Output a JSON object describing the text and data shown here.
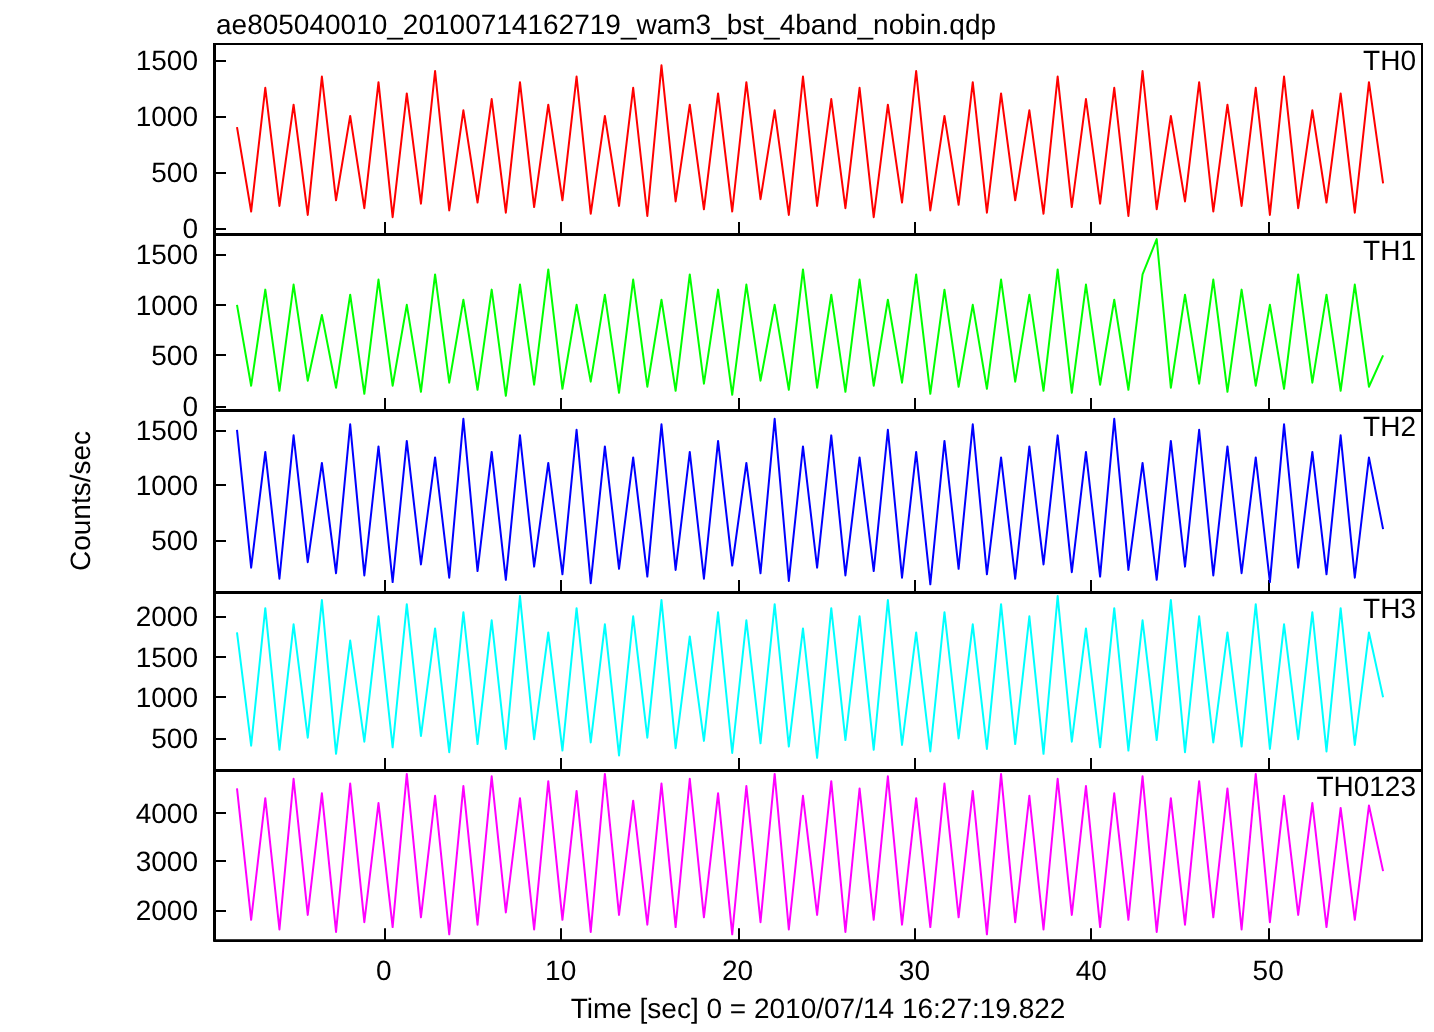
{
  "chart_data": [
    {
      "type": "line",
      "title": "ae805040010_20100714162719_wam3_bst_4band_nobin.qdp",
      "legend": "top right",
      "tick_labels": "y",
      "marker": "none",
      "x": [
        -8.3,
        -7.5,
        -6.7,
        -5.9,
        -5.1,
        -4.3,
        -3.5,
        -2.7,
        -1.9,
        -1.1,
        -0.3,
        0.5,
        1.3,
        2.1,
        2.9,
        3.7,
        4.5,
        5.3,
        6.1,
        6.9,
        7.7,
        8.5,
        9.3,
        10.1,
        10.9,
        11.7,
        12.5,
        13.3,
        14.1,
        14.9,
        15.7,
        16.5,
        17.3,
        18.1,
        18.9,
        19.7,
        20.5,
        21.3,
        22.1,
        22.9,
        23.7,
        24.5,
        25.3,
        26.1,
        26.9,
        27.7,
        28.5,
        29.3,
        30.1,
        30.9,
        31.7,
        32.5,
        33.3,
        34.1,
        34.9,
        35.7,
        36.5,
        37.3,
        38.1,
        38.9,
        39.7,
        40.5,
        41.3,
        42.1,
        42.9,
        43.7,
        44.5,
        45.3,
        46.1,
        46.9,
        47.7,
        48.5,
        49.3,
        50.1,
        50.9,
        51.7,
        52.5,
        53.3,
        54.1,
        54.9,
        55.7,
        56.5
      ],
      "series": [
        {
          "name": "TH0",
          "color": "#ff0000",
          "values": [
            900,
            150,
            1250,
            200,
            1100,
            120,
            1350,
            250,
            1000,
            180,
            1300,
            100,
            1200,
            220,
            1400,
            160,
            1050,
            230,
            1150,
            140,
            1300,
            190,
            1100,
            250,
            1350,
            130,
            1000,
            200,
            1250,
            110,
            1450,
            240,
            1100,
            170,
            1200,
            150,
            1300,
            260,
            1050,
            120,
            1350,
            200,
            1150,
            180,
            1250,
            100,
            1100,
            230,
            1400,
            160,
            1000,
            210,
            1300,
            140,
            1200,
            250,
            1050,
            130,
            1350,
            190,
            1150,
            220,
            1250,
            110,
            1400,
            170,
            1000,
            240,
            1300,
            150,
            1100,
            200,
            1250,
            120,
            1350,
            180,
            1050,
            230,
            1200,
            140,
            1300,
            400
          ]
        }
      ],
      "xlim": [
        -9.6,
        58.7
      ],
      "xticks": [
        0,
        10,
        20,
        30,
        40,
        50
      ],
      "ylim": [
        -50,
        1640
      ],
      "yticks": [
        0,
        500,
        1000,
        1500
      ]
    },
    {
      "type": "line",
      "legend": "top right",
      "tick_labels": "y",
      "marker": "none",
      "x": [
        -8.3,
        -7.5,
        -6.7,
        -5.9,
        -5.1,
        -4.3,
        -3.5,
        -2.7,
        -1.9,
        -1.1,
        -0.3,
        0.5,
        1.3,
        2.1,
        2.9,
        3.7,
        4.5,
        5.3,
        6.1,
        6.9,
        7.7,
        8.5,
        9.3,
        10.1,
        10.9,
        11.7,
        12.5,
        13.3,
        14.1,
        14.9,
        15.7,
        16.5,
        17.3,
        18.1,
        18.9,
        19.7,
        20.5,
        21.3,
        22.1,
        22.9,
        23.7,
        24.5,
        25.3,
        26.1,
        26.9,
        27.7,
        28.5,
        29.3,
        30.1,
        30.9,
        31.7,
        32.5,
        33.3,
        34.1,
        34.9,
        35.7,
        36.5,
        37.3,
        38.1,
        38.9,
        39.7,
        40.5,
        41.3,
        42.1,
        42.9,
        43.7,
        44.5,
        45.3,
        46.1,
        46.9,
        47.7,
        48.5,
        49.3,
        50.1,
        50.9,
        51.7,
        52.5,
        53.3,
        54.1,
        54.9,
        55.7,
        56.5
      ],
      "series": [
        {
          "name": "TH1",
          "color": "#00ff00",
          "values": [
            1000,
            200,
            1150,
            150,
            1200,
            250,
            900,
            180,
            1100,
            120,
            1250,
            200,
            1000,
            140,
            1300,
            230,
            1050,
            160,
            1150,
            100,
            1200,
            210,
            1350,
            170,
            1000,
            240,
            1100,
            130,
            1250,
            190,
            1050,
            150,
            1300,
            220,
            1150,
            110,
            1200,
            250,
            1000,
            160,
            1350,
            180,
            1100,
            140,
            1250,
            200,
            1050,
            230,
            1300,
            120,
            1150,
            190,
            1000,
            170,
            1250,
            240,
            1100,
            150,
            1350,
            130,
            1200,
            210,
            1050,
            160,
            1300,
            1650,
            180,
            1100,
            220,
            1250,
            140,
            1150,
            200,
            1000,
            170,
            1300,
            230,
            1100,
            150,
            1200,
            190,
            500
          ]
        }
      ],
      "xlim": [
        -9.6,
        58.7
      ],
      "xticks": [
        0,
        10,
        20,
        30,
        40,
        50
      ],
      "ylim": [
        -40,
        1700
      ],
      "yticks": [
        0,
        500,
        1000,
        1500
      ]
    },
    {
      "type": "line",
      "ylabel": "Counts/sec",
      "legend": "top right",
      "tick_labels": "y",
      "marker": "none",
      "x": [
        -8.3,
        -7.5,
        -6.7,
        -5.9,
        -5.1,
        -4.3,
        -3.5,
        -2.7,
        -1.9,
        -1.1,
        -0.3,
        0.5,
        1.3,
        2.1,
        2.9,
        3.7,
        4.5,
        5.3,
        6.1,
        6.9,
        7.7,
        8.5,
        9.3,
        10.1,
        10.9,
        11.7,
        12.5,
        13.3,
        14.1,
        14.9,
        15.7,
        16.5,
        17.3,
        18.1,
        18.9,
        19.7,
        20.5,
        21.3,
        22.1,
        22.9,
        23.7,
        24.5,
        25.3,
        26.1,
        26.9,
        27.7,
        28.5,
        29.3,
        30.1,
        30.9,
        31.7,
        32.5,
        33.3,
        34.1,
        34.9,
        35.7,
        36.5,
        37.3,
        38.1,
        38.9,
        39.7,
        40.5,
        41.3,
        42.1,
        42.9,
        43.7,
        44.5,
        45.3,
        46.1,
        46.9,
        47.7,
        48.5,
        49.3,
        50.1,
        50.9,
        51.7,
        52.5,
        53.3,
        54.1,
        54.9,
        55.7,
        56.5
      ],
      "series": [
        {
          "name": "TH2",
          "color": "#0000ff",
          "values": [
            1500,
            250,
            1300,
            150,
            1450,
            300,
            1200,
            200,
            1550,
            180,
            1350,
            120,
            1400,
            280,
            1250,
            160,
            1600,
            220,
            1300,
            140,
            1450,
            260,
            1200,
            190,
            1500,
            110,
            1350,
            240,
            1250,
            170,
            1550,
            230,
            1300,
            150,
            1400,
            270,
            1200,
            200,
            1600,
            130,
            1350,
            250,
            1450,
            180,
            1250,
            220,
            1500,
            160,
            1300,
            100,
            1400,
            240,
            1550,
            190,
            1250,
            150,
            1350,
            280,
            1450,
            210,
            1300,
            170,
            1600,
            230,
            1200,
            140,
            1400,
            260,
            1500,
            180,
            1350,
            200,
            1250,
            120,
            1550,
            250,
            1300,
            190,
            1450,
            160,
            1250,
            600
          ]
        }
      ],
      "xlim": [
        -9.6,
        58.7
      ],
      "xticks": [
        0,
        10,
        20,
        30,
        40,
        50
      ],
      "ylim": [
        30,
        1680
      ],
      "yticks": [
        500,
        1000,
        1500
      ]
    },
    {
      "type": "line",
      "legend": "top right",
      "tick_labels": "y",
      "marker": "none",
      "x": [
        -8.3,
        -7.5,
        -6.7,
        -5.9,
        -5.1,
        -4.3,
        -3.5,
        -2.7,
        -1.9,
        -1.1,
        -0.3,
        0.5,
        1.3,
        2.1,
        2.9,
        3.7,
        4.5,
        5.3,
        6.1,
        6.9,
        7.7,
        8.5,
        9.3,
        10.1,
        10.9,
        11.7,
        12.5,
        13.3,
        14.1,
        14.9,
        15.7,
        16.5,
        17.3,
        18.1,
        18.9,
        19.7,
        20.5,
        21.3,
        22.1,
        22.9,
        23.7,
        24.5,
        25.3,
        26.1,
        26.9,
        27.7,
        28.5,
        29.3,
        30.1,
        30.9,
        31.7,
        32.5,
        33.3,
        34.1,
        34.9,
        35.7,
        36.5,
        37.3,
        38.1,
        38.9,
        39.7,
        40.5,
        41.3,
        42.1,
        42.9,
        43.7,
        44.5,
        45.3,
        46.1,
        46.9,
        47.7,
        48.5,
        49.3,
        50.1,
        50.9,
        51.7,
        52.5,
        53.3,
        54.1,
        54.9,
        55.7,
        56.5
      ],
      "series": [
        {
          "name": "TH3",
          "color": "#00ffff",
          "values": [
            1800,
            400,
            2100,
            350,
            1900,
            500,
            2200,
            300,
            1700,
            450,
            2000,
            380,
            2150,
            520,
            1850,
            320,
            2050,
            420,
            1950,
            360,
            2250,
            480,
            1800,
            340,
            2100,
            440,
            1900,
            280,
            2000,
            500,
            2200,
            370,
            1750,
            460,
            2050,
            310,
            1950,
            430,
            2150,
            390,
            1850,
            250,
            2100,
            470,
            2000,
            350,
            2200,
            410,
            1800,
            330,
            2050,
            490,
            1900,
            360,
            2150,
            420,
            2000,
            300,
            2250,
            450,
            1850,
            380,
            2100,
            340,
            1950,
            470,
            2200,
            320,
            2000,
            440,
            1800,
            390,
            2150,
            360,
            1900,
            480,
            2050,
            330,
            2100,
            410,
            1800,
            1000
          ]
        }
      ],
      "xlim": [
        -9.6,
        58.7
      ],
      "xticks": [
        0,
        10,
        20,
        30,
        40,
        50
      ],
      "ylim": [
        100,
        2300
      ],
      "yticks": [
        500,
        1000,
        1500,
        2000
      ]
    },
    {
      "type": "line",
      "xlabel": "Time [sec] 0 = 2010/07/14 16:27:19.822",
      "legend": "top right",
      "marker": "none",
      "x": [
        -8.3,
        -7.5,
        -6.7,
        -5.9,
        -5.1,
        -4.3,
        -3.5,
        -2.7,
        -1.9,
        -1.1,
        -0.3,
        0.5,
        1.3,
        2.1,
        2.9,
        3.7,
        4.5,
        5.3,
        6.1,
        6.9,
        7.7,
        8.5,
        9.3,
        10.1,
        10.9,
        11.7,
        12.5,
        13.3,
        14.1,
        14.9,
        15.7,
        16.5,
        17.3,
        18.1,
        18.9,
        19.7,
        20.5,
        21.3,
        22.1,
        22.9,
        23.7,
        24.5,
        25.3,
        26.1,
        26.9,
        27.7,
        28.5,
        29.3,
        30.1,
        30.9,
        31.7,
        32.5,
        33.3,
        34.1,
        34.9,
        35.7,
        36.5,
        37.3,
        38.1,
        38.9,
        39.7,
        40.5,
        41.3,
        42.1,
        42.9,
        43.7,
        44.5,
        45.3,
        46.1,
        46.9,
        47.7,
        48.5,
        49.3,
        50.1,
        50.9,
        51.7,
        52.5,
        53.3,
        54.1,
        54.9,
        55.7,
        56.5
      ],
      "series": [
        {
          "name": "TH0123",
          "color": "#ff00ff",
          "values": [
            4500,
            1800,
            4300,
            1600,
            4700,
            1900,
            4400,
            1550,
            4600,
            1750,
            4200,
            1650,
            4800,
            1850,
            4350,
            1500,
            4550,
            1700,
            4750,
            1950,
            4300,
            1600,
            4650,
            1800,
            4450,
            1550,
            4800,
            1900,
            4250,
            1700,
            4600,
            1650,
            4700,
            1850,
            4400,
            1500,
            4550,
            1750,
            4800,
            1600,
            4350,
            1900,
            4650,
            1550,
            4500,
            1800,
            4750,
            1700,
            4300,
            1650,
            4600,
            1850,
            4450,
            1500,
            4800,
            1750,
            4350,
            1600,
            4700,
            1900,
            4550,
            1650,
            4400,
            1800,
            4750,
            1550,
            4300,
            1700,
            4650,
            1850,
            4500,
            1600,
            4800,
            1750,
            4350,
            1900,
            4200,
            1650,
            4100,
            1800,
            4150,
            2800
          ]
        }
      ],
      "xlim": [
        -9.6,
        58.7
      ],
      "xticks": [
        0,
        10,
        20,
        30,
        40,
        50
      ],
      "ylim": [
        1380,
        4880
      ],
      "yticks": [
        2000,
        3000,
        4000
      ]
    }
  ]
}
